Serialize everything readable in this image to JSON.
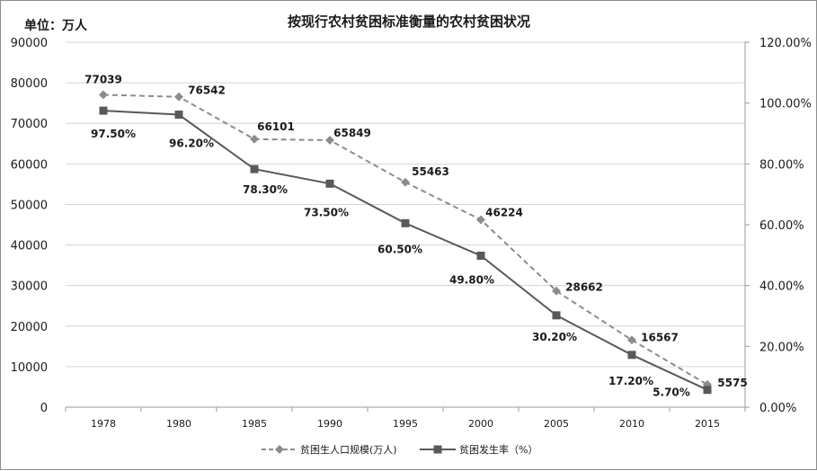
{
  "chart_data": {
    "type": "line",
    "title": "按现行农村贫困标准衡量的农村贫困状况",
    "unit_label": "单位：万人",
    "categories": [
      "1978",
      "1980",
      "1985",
      "1990",
      "1995",
      "2000",
      "2005",
      "2010",
      "2015"
    ],
    "left_axis": {
      "ylim": [
        0,
        90000
      ],
      "ticks": [
        "0",
        "10000",
        "20000",
        "30000",
        "40000",
        "50000",
        "60000",
        "70000",
        "80000",
        "90000"
      ]
    },
    "right_axis": {
      "ylim": [
        0,
        120
      ],
      "ticks": [
        "0.00%",
        "20.00%",
        "40.00%",
        "60.00%",
        "80.00%",
        "100.00%",
        "120.00%"
      ]
    },
    "grid": true,
    "legend_position": "bottom",
    "series": [
      {
        "name": "贫困生人口规模(万人)",
        "axis": "left",
        "style": "dashed",
        "marker": "diamond",
        "color": "#8c8c8c",
        "values": [
          77039,
          76542,
          66101,
          65849,
          55463,
          46224,
          28662,
          16567,
          5575
        ],
        "labels": [
          "77039",
          "76542",
          "66101",
          "65849",
          "55463",
          "46224",
          "28662",
          "16567",
          "5575"
        ]
      },
      {
        "name": "贫困发生率（%）",
        "axis": "right",
        "style": "solid",
        "marker": "square",
        "color": "#595959",
        "values": [
          97.5,
          96.2,
          78.3,
          73.5,
          60.5,
          49.8,
          30.2,
          17.2,
          5.7
        ],
        "labels": [
          "97.50%",
          "96.20%",
          "78.30%",
          "73.50%",
          "60.50%",
          "49.80%",
          "30.20%",
          "17.20%",
          "5.70%"
        ]
      }
    ]
  }
}
